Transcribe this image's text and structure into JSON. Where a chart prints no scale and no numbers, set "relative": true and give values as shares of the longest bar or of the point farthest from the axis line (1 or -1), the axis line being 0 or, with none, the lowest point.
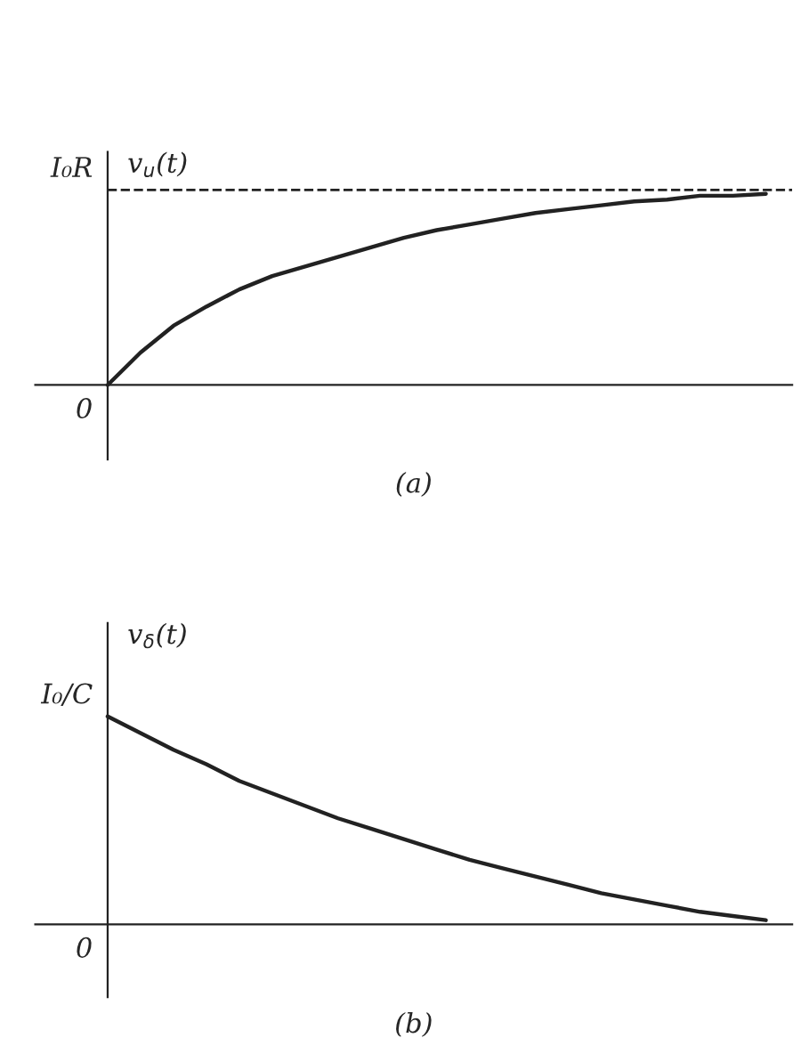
{
  "chart_data": [
    {
      "type": "line",
      "relative": true,
      "ylabel": "v$_{u}$(t)",
      "xlabel": "(a)",
      "categories": [
        null,
        null,
        null,
        null,
        null,
        null,
        null,
        null,
        null,
        null,
        null,
        null,
        null,
        null,
        null,
        null,
        null,
        null,
        null,
        null,
        null
      ],
      "series": [
        {
          "color": "#222222",
          "values": [
            0,
            0.17,
            0.31,
            0.41,
            0.5,
            0.57,
            0.62,
            0.67,
            0.72,
            0.77,
            0.81,
            0.84,
            0.87,
            0.9,
            0.92,
            0.94,
            0.96,
            0.97,
            0.99,
            0.99,
            1
          ]
        }
      ],
      "ref_lines": [
        {
          "axis": "y",
          "value": 1.02,
          "color": "#222222",
          "line_style": "dashed"
        }
      ],
      "annotations": [
        "0",
        "I₀R"
      ],
      "grid": false,
      "legend": false,
      "marker": "none",
      "line_style": "solid"
    },
    {
      "type": "line",
      "relative": true,
      "ylabel": "v$_{δ}$(t)",
      "xlabel": "(b)",
      "categories": [
        null,
        null,
        null,
        null,
        null,
        null,
        null,
        null,
        null,
        null,
        null,
        null,
        null,
        null,
        null,
        null,
        null,
        null,
        null,
        null,
        null
      ],
      "series": [
        {
          "color": "#222222",
          "values": [
            1,
            0.92,
            0.84,
            0.77,
            0.69,
            0.63,
            0.57,
            0.51,
            0.46,
            0.41,
            0.36,
            0.31,
            0.27,
            0.23,
            0.19,
            0.15,
            0.12,
            0.09,
            0.06,
            0.04,
            0.02
          ]
        }
      ],
      "annotations": [
        "0",
        "I₀/C"
      ],
      "grid": false,
      "legend": false,
      "marker": "none",
      "line_style": "solid"
    }
  ]
}
